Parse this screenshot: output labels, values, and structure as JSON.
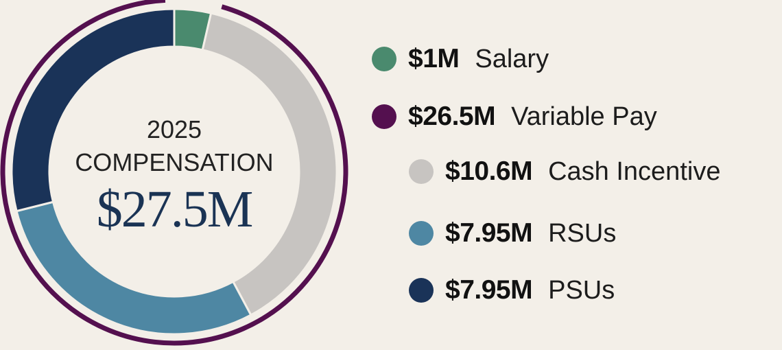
{
  "chart_data": {
    "type": "pie",
    "style": "donut",
    "center": {
      "year": "2025",
      "caption": "COMPENSATION",
      "total": "$27.5M"
    },
    "slices": [
      {
        "key": "salary",
        "value": 1.0,
        "color": "#4a8a6e"
      },
      {
        "key": "cash",
        "value": 10.6,
        "color": "#c7c4c1"
      },
      {
        "key": "rsus",
        "value": 7.95,
        "color": "#4e87a3"
      },
      {
        "key": "psus",
        "value": 7.95,
        "color": "#1a3358"
      }
    ],
    "outer_ring": {
      "key": "variable",
      "value": 26.5,
      "color": "#54104f"
    },
    "legend": [
      {
        "key": "salary",
        "amount": "$1M",
        "label": "Salary",
        "color": "#4a8a6e"
      },
      {
        "key": "variable",
        "amount": "$26.5M",
        "label": "Variable Pay",
        "color": "#54104f"
      },
      {
        "key": "cash",
        "amount": "$10.6M",
        "label": "Cash Incentive",
        "color": "#c7c4c1"
      },
      {
        "key": "rsus",
        "amount": "$7.95M",
        "label": "RSUs",
        "color": "#4e87a3"
      },
      {
        "key": "psus",
        "amount": "$7.95M",
        "label": "PSUs",
        "color": "#1a3358"
      }
    ],
    "total_value": 27.5
  }
}
